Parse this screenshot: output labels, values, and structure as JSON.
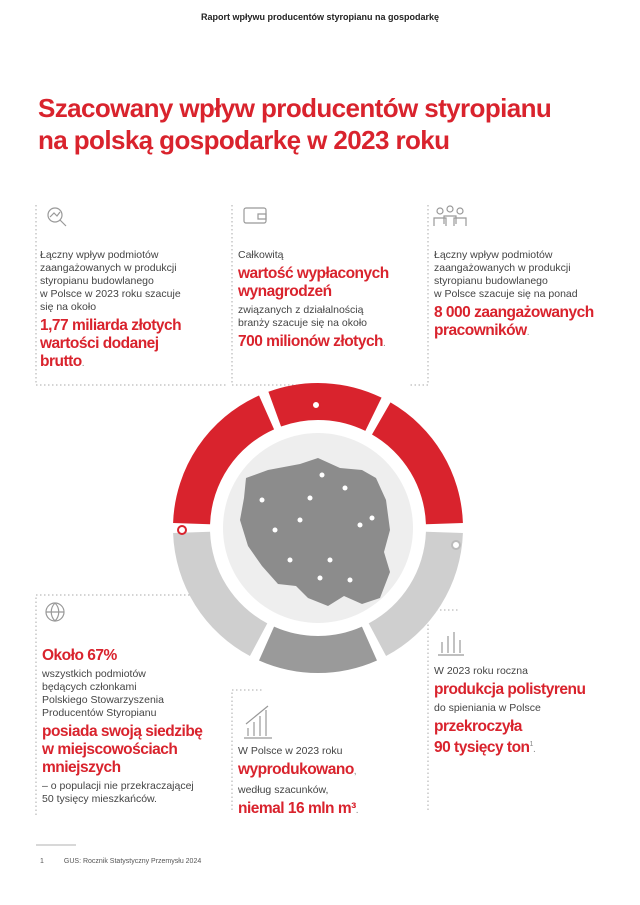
{
  "header": {
    "title": "Raport wpływu producentów styropianu na gospodarkę"
  },
  "title": {
    "lines": [
      "Szacowany wpływ producentów styropianu",
      "na polską gospodarkę w 2023 roku"
    ]
  },
  "blocks": [
    {
      "sections": [
        {
          "regular": [
            "Łączny wpływ podmiotów",
            "zaangażowanych w produkcji",
            "styropianu budowlanego",
            "w Polsce w 2023 roku szacuje",
            "się na około"
          ]
        },
        {
          "highlight": [
            "1,77 miliarda złotych",
            "wartości dodanej",
            "brutto"
          ],
          "suffix": "."
        }
      ]
    },
    {
      "sections": [
        {
          "regular": [
            "Całkowitą"
          ]
        },
        {
          "highlight": [
            "wartość wypłaconych",
            "wynagrodzeń"
          ]
        },
        {
          "regular": [
            "związanych z działalnością",
            "branży szacuje się na około"
          ]
        },
        {
          "highlight": [
            "700 milionów złotych"
          ],
          "suffix": "."
        }
      ]
    },
    {
      "sections": [
        {
          "regular": [
            "Łączny wpływ podmiotów",
            "zaangażowanych w produkcji",
            "styropianu budowlanego",
            "w Polsce szacuje się na ponad"
          ]
        },
        {
          "highlight": [
            "8 000 zaangażowanych",
            "pracowników"
          ],
          "suffix": "."
        }
      ]
    },
    {
      "sections": [
        {
          "highlight": [
            "Około 67%"
          ]
        },
        {
          "regular": [
            "wszystkich podmiotów",
            "będących członkami",
            "Polskiego Stowarzyszenia",
            "Producentów Styropianu"
          ]
        },
        {
          "highlight": [
            "posiada swoją siedzibę",
            "w miejscowościach",
            "mniejszych"
          ]
        },
        {
          "regular": [
            "– o populacji nie przekraczającej",
            "50 tysięcy mieszkańców."
          ]
        }
      ]
    },
    {
      "sections": [
        {
          "regular": [
            "W Polsce w 2023 roku"
          ]
        },
        {
          "highlight": [
            "wyprodukowano"
          ],
          "suffix": ","
        },
        {
          "regular": [
            "według szacunków,"
          ]
        },
        {
          "highlight": [
            "niemal 16 mln m³"
          ],
          "suffix": "."
        }
      ]
    },
    {
      "sections": [
        {
          "regular": [
            "W 2023 roku roczna"
          ]
        },
        {
          "highlight": [
            "produkcja polistyrenu"
          ]
        },
        {
          "regular": [
            "do spieniania w Polsce"
          ]
        },
        {
          "highlight": [
            "przekroczyła",
            "90 tysięcy ton"
          ],
          "footnote": "1",
          "suffix": "."
        }
      ]
    }
  ],
  "footnote": {
    "number": "1",
    "text": "GUS: Rocznik Statystyczny Przemysłu 2024"
  }
}
